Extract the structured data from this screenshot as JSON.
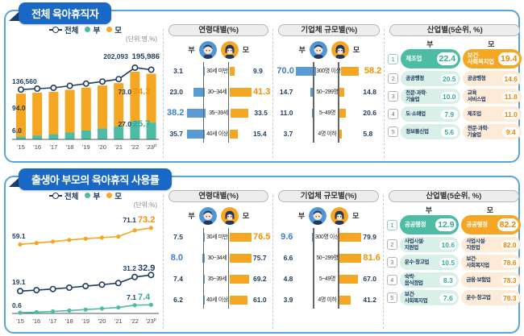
{
  "colors": {
    "navy": "#1f3c60",
    "teal": "#4cbca4",
    "orange": "#f5a623",
    "blue_bar": "#5b9bd5",
    "blue_text": "#3e7fd2",
    "teal_text": "#2fae97",
    "orange_text": "#f39000",
    "badge_blue": "#1a68c5",
    "panel_border": "#58a4da",
    "mint_bg": "#d9f0e9",
    "peach_bg": "#fdebd7"
  },
  "panel1": {
    "title": "전체 육아휴직자",
    "legend": {
      "total": "전체",
      "father": "부",
      "mother": "모",
      "unit": "(단위:명,%)"
    },
    "age_section": {
      "header": "연령대별(%)",
      "father_label": "부",
      "mother_label": "모",
      "rows": [
        {
          "category": "30세 미만",
          "father": "3.1",
          "mother": "9.9"
        },
        {
          "category": "30~34세",
          "father": "23.0",
          "mother": "41.3",
          "mother_hl": true
        },
        {
          "category": "35~39세",
          "father": "38.2",
          "father_hl": true,
          "mother": "33.5"
        },
        {
          "category": "40세 이상",
          "father": "35.7",
          "mother": "15.4"
        }
      ]
    },
    "company_section": {
      "header": "기업체 규모별(%)",
      "father_label": "부",
      "mother_label": "모",
      "rows": [
        {
          "category": "300명 이상",
          "father": "70.0",
          "father_hl": true,
          "mother": "58.2",
          "mother_hl": true
        },
        {
          "category": "50~299명",
          "father": "14.7",
          "mother": "14.8"
        },
        {
          "category": "5~49명",
          "father": "11.0",
          "mother": "20.6"
        },
        {
          "category": "4명 이하",
          "father": "3.7",
          "mother": "5.8"
        }
      ]
    },
    "industry_section": {
      "header": "산업별(5순위, %)",
      "father_col": "부",
      "mother_col": "모",
      "rows": [
        {
          "rank": "1",
          "father_name": "제조업",
          "father_value": "22.4",
          "mother_name": "보건·\n사회복지업",
          "mother_value": "19.4"
        },
        {
          "rank": "2",
          "father_name": "공공행정",
          "father_value": "20.5",
          "mother_name": "공공행정",
          "mother_value": "14.6"
        },
        {
          "rank": "3",
          "father_name": "전문·과학·\n기술업",
          "father_value": "10.0",
          "mother_name": "교육\n서비스업",
          "mother_value": "11.8"
        },
        {
          "rank": "4",
          "father_name": "도·소매업",
          "father_value": "7.9",
          "mother_name": "제조업",
          "mother_value": "11.0"
        },
        {
          "rank": "5",
          "father_name": "정보통신업",
          "father_value": "5.6",
          "mother_name": "전문·과학·\n기술업",
          "mother_value": "9.4"
        }
      ]
    }
  },
  "panel2": {
    "title": "출생아 부모의 육아휴직 사용률",
    "legend": {
      "total": "전체",
      "father": "부",
      "mother": "모",
      "unit": "(단위:%)"
    },
    "age_section": {
      "header": "연령대별(%)",
      "father_label": "부",
      "mother_label": "모",
      "rows": [
        {
          "category": "30세 미만",
          "father": "7.5",
          "mother": "76.5",
          "mother_hl": true
        },
        {
          "category": "30~34세",
          "father": "8.0",
          "father_hl": true,
          "mother": "75.7"
        },
        {
          "category": "35~39세",
          "father": "7.4",
          "mother": "69.2"
        },
        {
          "category": "40세 이상",
          "father": "6.2",
          "mother": "61.0"
        }
      ]
    },
    "company_section": {
      "header": "기업체 규모별(%)",
      "father_label": "부",
      "mother_label": "모",
      "rows": [
        {
          "category": "300명 이상",
          "father": "9.6",
          "father_hl": true,
          "mother": "79.9"
        },
        {
          "category": "50~299명",
          "father": "6.6",
          "mother": "81.6",
          "mother_hl": true
        },
        {
          "category": "5~49명",
          "father": "4.8",
          "mother": "67.0"
        },
        {
          "category": "4명 이하",
          "father": "3.9",
          "mother": "41.2"
        }
      ]
    },
    "industry_section": {
      "header": "산업별(5순위, %)",
      "father_col": "부",
      "mother_col": "모",
      "rows": [
        {
          "rank": "1",
          "father_name": "공공행정",
          "father_value": "12.9",
          "mother_name": "공공행정",
          "mother_value": "82.2"
        },
        {
          "rank": "2",
          "father_name": "사업시설·\n지원업",
          "father_value": "10.6",
          "mother_name": "사업시설·\n지원업",
          "mother_value": "82.0"
        },
        {
          "rank": "3",
          "father_name": "운수·창고업",
          "father_value": "10.5",
          "mother_name": "보건·\n사회복지업",
          "mother_value": "78.6"
        },
        {
          "rank": "4",
          "father_name": "숙박·\n음식점업",
          "father_value": "8.3",
          "mother_name": "금융·보험업",
          "mother_value": "78.3"
        },
        {
          "rank": "5",
          "father_name": "보건·\n사회복지업",
          "father_value": "7.6",
          "mother_name": "운수·창고업",
          "mother_value": "78.3"
        }
      ]
    }
  },
  "chart_data": [
    {
      "type": "stacked-bar-line",
      "title": "전체 육아휴직자 (명, %)",
      "legend": [
        "전체",
        "부",
        "모"
      ],
      "x": [
        "'15",
        "'16",
        "'17",
        "'18",
        "'19",
        "'20",
        "'21",
        "'22",
        "'23ᵖ"
      ],
      "total": [
        136560,
        139500,
        142000,
        148000,
        154500,
        160700,
        168000,
        202093,
        195986
      ],
      "father_pct": [
        6.0,
        8.5,
        10.8,
        13.8,
        17.1,
        20.3,
        22.7,
        27.0,
        25.7
      ],
      "ylim": [
        0,
        210000
      ],
      "labels": {
        "total_2015": "136,560",
        "total_2022": "202,093",
        "total_2023": "195,986",
        "mother_2015": "94.0",
        "father_2015": "6.0",
        "mother_2022": "73.0",
        "mother_2023": "74.3",
        "father_2022": "27.0",
        "father_2023": "25.7"
      }
    },
    {
      "type": "line",
      "title": "출생아 부모의 육아휴직 사용률 (%)",
      "legend": [
        "전체",
        "부",
        "모"
      ],
      "x": [
        "'15",
        "'16",
        "'17",
        "'18",
        "'19",
        "'20",
        "'21",
        "'22",
        "'23ᵖ"
      ],
      "series": [
        {
          "name": "모",
          "values": [
            59.1,
            60.3,
            61.5,
            62.9,
            64.0,
            64.9,
            65.8,
            71.1,
            73.2
          ]
        },
        {
          "name": "전체",
          "values": [
            19.1,
            19.9,
            20.9,
            22.1,
            23.4,
            24.6,
            26.0,
            31.2,
            32.9
          ]
        },
        {
          "name": "부",
          "values": [
            0.6,
            1.1,
            1.7,
            2.5,
            3.3,
            4.2,
            5.1,
            7.1,
            7.4
          ]
        }
      ],
      "ylim": [
        0,
        80
      ],
      "labels": {
        "mother_2015": "59.1",
        "mother_2022": "71.1",
        "mother_2023": "73.2",
        "total_2015": "19.1",
        "total_2022": "31.2",
        "total_2023": "32.9",
        "father_2015": "0.6",
        "father_2022": "7.1",
        "father_2023": "7.4"
      }
    }
  ]
}
